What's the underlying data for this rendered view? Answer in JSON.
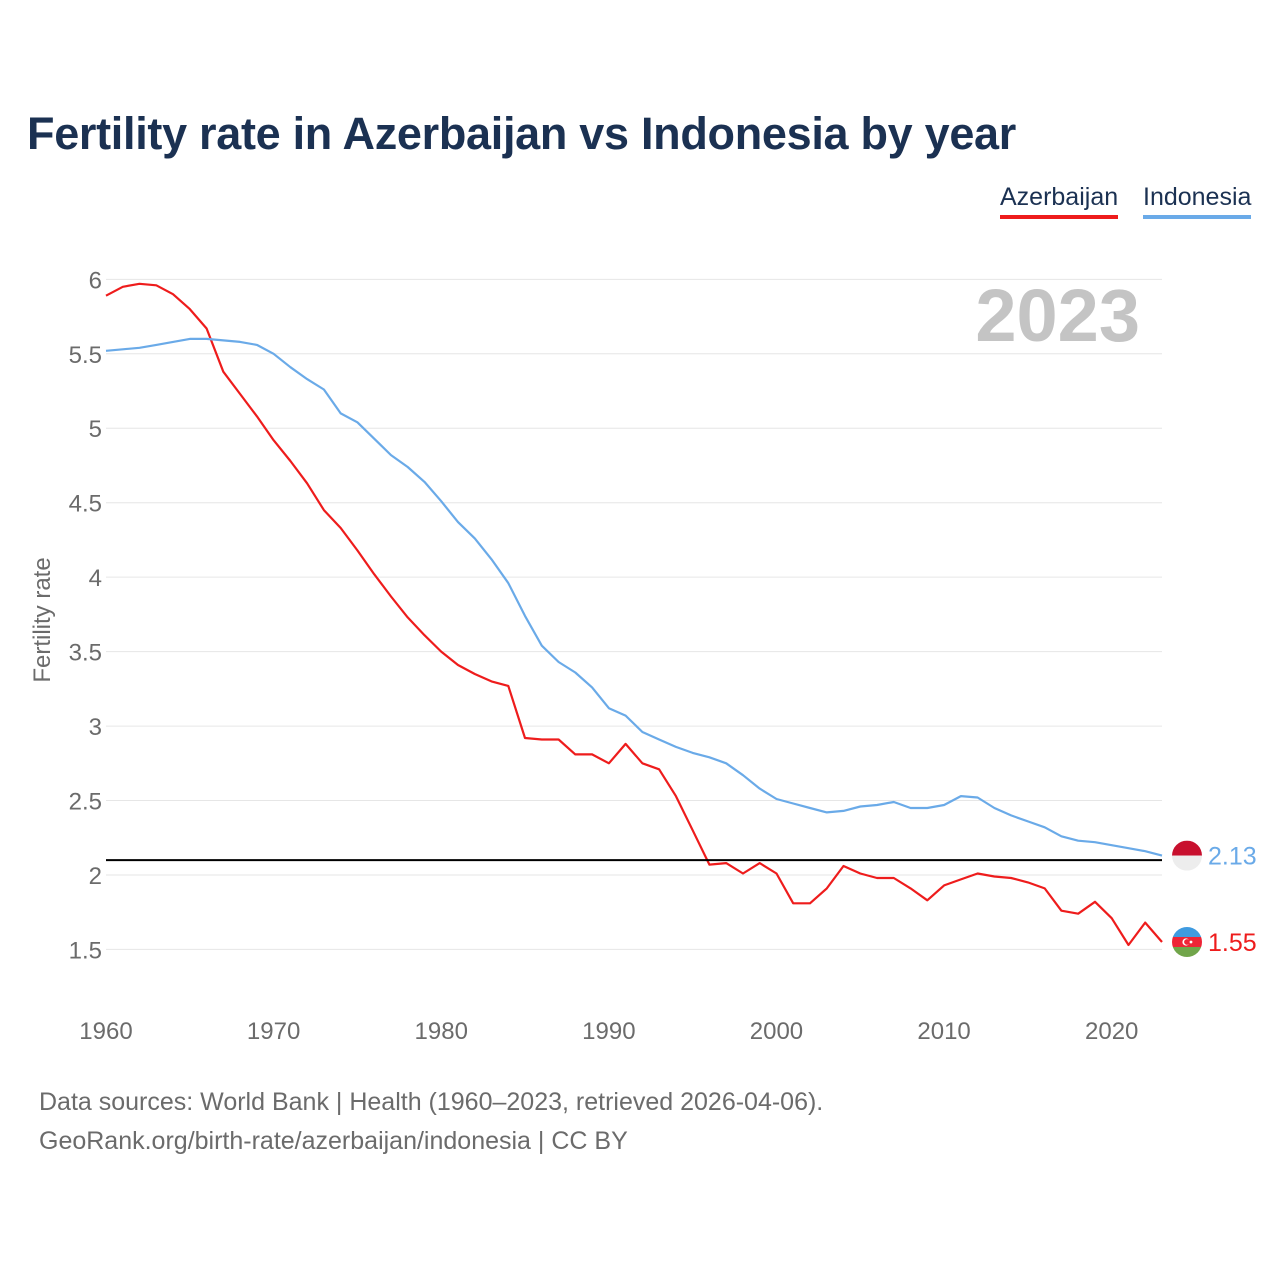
{
  "title": "Fertility rate in Azerbaijan vs Indonesia by year",
  "legend": [
    {
      "name": "Azerbaijan",
      "color": "#ee1c1c"
    },
    {
      "name": "Indonesia",
      "color": "#6aaae8"
    }
  ],
  "year_label": "2023",
  "footer": {
    "source": "Data sources: World Bank | Health (1960–2023, retrieved 2026-04-06).",
    "credit": "GeoRank.org/birth-rate/azerbaijan/indonesia | CC BY"
  },
  "chart_data": {
    "type": "line",
    "title": "Fertility rate in Azerbaijan vs Indonesia by year",
    "xlabel": "",
    "ylabel": "Fertility rate",
    "xlim": [
      1960,
      2023
    ],
    "ylim": [
      1.1,
      6.15
    ],
    "x_ticks": [
      1960,
      1970,
      1980,
      1990,
      2000,
      2010,
      2020
    ],
    "x_tick_labels": [
      "1960",
      "1970",
      "1980",
      "1990",
      "2000",
      "2010",
      "2020"
    ],
    "y_ticks": [
      1.5,
      2,
      2.5,
      3,
      3.5,
      4,
      4.5,
      5,
      5.5,
      6
    ],
    "y_tick_labels": [
      "1.5",
      "2",
      "2.5",
      "3",
      "3.5",
      "4",
      "4.5",
      "5",
      "5.5",
      "6"
    ],
    "grid": true,
    "reference_line": {
      "y": 2.1,
      "color": "#000000"
    },
    "x": [
      1960,
      1961,
      1962,
      1963,
      1964,
      1965,
      1966,
      1967,
      1968,
      1969,
      1970,
      1971,
      1972,
      1973,
      1974,
      1975,
      1976,
      1977,
      1978,
      1979,
      1980,
      1981,
      1982,
      1983,
      1984,
      1985,
      1986,
      1987,
      1988,
      1989,
      1990,
      1991,
      1992,
      1993,
      1994,
      1995,
      1996,
      1997,
      1998,
      1999,
      2000,
      2001,
      2002,
      2003,
      2004,
      2005,
      2006,
      2007,
      2008,
      2009,
      2010,
      2011,
      2012,
      2013,
      2014,
      2015,
      2016,
      2017,
      2018,
      2019,
      2020,
      2021,
      2022,
      2023
    ],
    "series": [
      {
        "name": "Azerbaijan",
        "color": "#ee1c1c",
        "values": [
          5.89,
          5.95,
          5.97,
          5.96,
          5.9,
          5.8,
          5.67,
          5.38,
          5.23,
          5.08,
          4.92,
          4.78,
          4.63,
          4.45,
          4.33,
          4.18,
          4.02,
          3.87,
          3.73,
          3.61,
          3.5,
          3.41,
          3.35,
          3.3,
          3.27,
          2.92,
          2.91,
          2.91,
          2.81,
          2.81,
          2.75,
          2.88,
          2.75,
          2.71,
          2.53,
          2.3,
          2.07,
          2.08,
          2.01,
          2.08,
          2.01,
          1.81,
          1.81,
          1.91,
          2.06,
          2.01,
          1.98,
          1.98,
          1.91,
          1.83,
          1.93,
          1.97,
          2.01,
          1.99,
          1.98,
          1.95,
          1.91,
          1.76,
          1.74,
          1.82,
          1.71,
          1.53,
          1.68,
          1.55
        ],
        "final_label": "1.55"
      },
      {
        "name": "Indonesia",
        "color": "#6aaae8",
        "values": [
          5.52,
          5.53,
          5.54,
          5.56,
          5.58,
          5.6,
          5.6,
          5.59,
          5.58,
          5.56,
          5.5,
          5.41,
          5.33,
          5.26,
          5.1,
          5.04,
          4.93,
          4.82,
          4.74,
          4.64,
          4.51,
          4.37,
          4.26,
          4.12,
          3.96,
          3.74,
          3.54,
          3.43,
          3.36,
          3.26,
          3.12,
          3.07,
          2.96,
          2.91,
          2.86,
          2.82,
          2.79,
          2.75,
          2.67,
          2.58,
          2.51,
          2.48,
          2.45,
          2.42,
          2.43,
          2.46,
          2.47,
          2.49,
          2.45,
          2.45,
          2.47,
          2.53,
          2.52,
          2.45,
          2.4,
          2.36,
          2.32,
          2.26,
          2.23,
          2.22,
          2.2,
          2.18,
          2.16,
          2.13
        ],
        "final_label": "2.13"
      }
    ]
  }
}
